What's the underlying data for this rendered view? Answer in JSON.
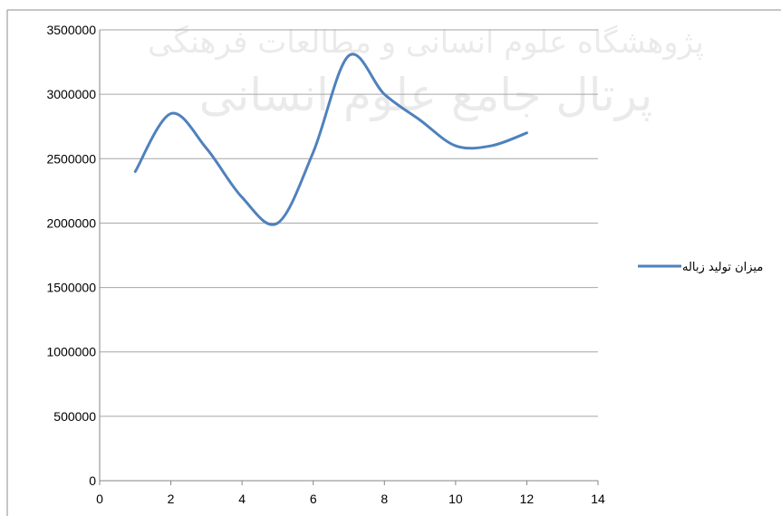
{
  "chart_data": {
    "type": "line",
    "series": [
      {
        "name": "میزان تولید زباله",
        "color": "#4f81bd",
        "x": [
          1,
          2,
          3,
          4,
          5,
          6,
          7,
          8,
          9,
          10,
          11,
          12
        ],
        "y": [
          2400000,
          2850000,
          2580000,
          2200000,
          2000000,
          2550000,
          3300000,
          3000000,
          2800000,
          2600000,
          2600000,
          2700000
        ]
      }
    ],
    "xlim": [
      0,
      14
    ],
    "ylim": [
      0,
      3500000
    ],
    "x_ticks": [
      "0",
      "2",
      "4",
      "6",
      "8",
      "10",
      "12",
      "14"
    ],
    "y_ticks": [
      "0",
      "500000",
      "1000000",
      "1500000",
      "2000000",
      "2500000",
      "3000000",
      "3500000"
    ],
    "grid": "horizontal",
    "legend_position": "right",
    "watermark": [
      "پرتال جامع علوم انسانی",
      "پژوهشگاه علوم انسانی و مطالعات فرهنگی"
    ]
  }
}
